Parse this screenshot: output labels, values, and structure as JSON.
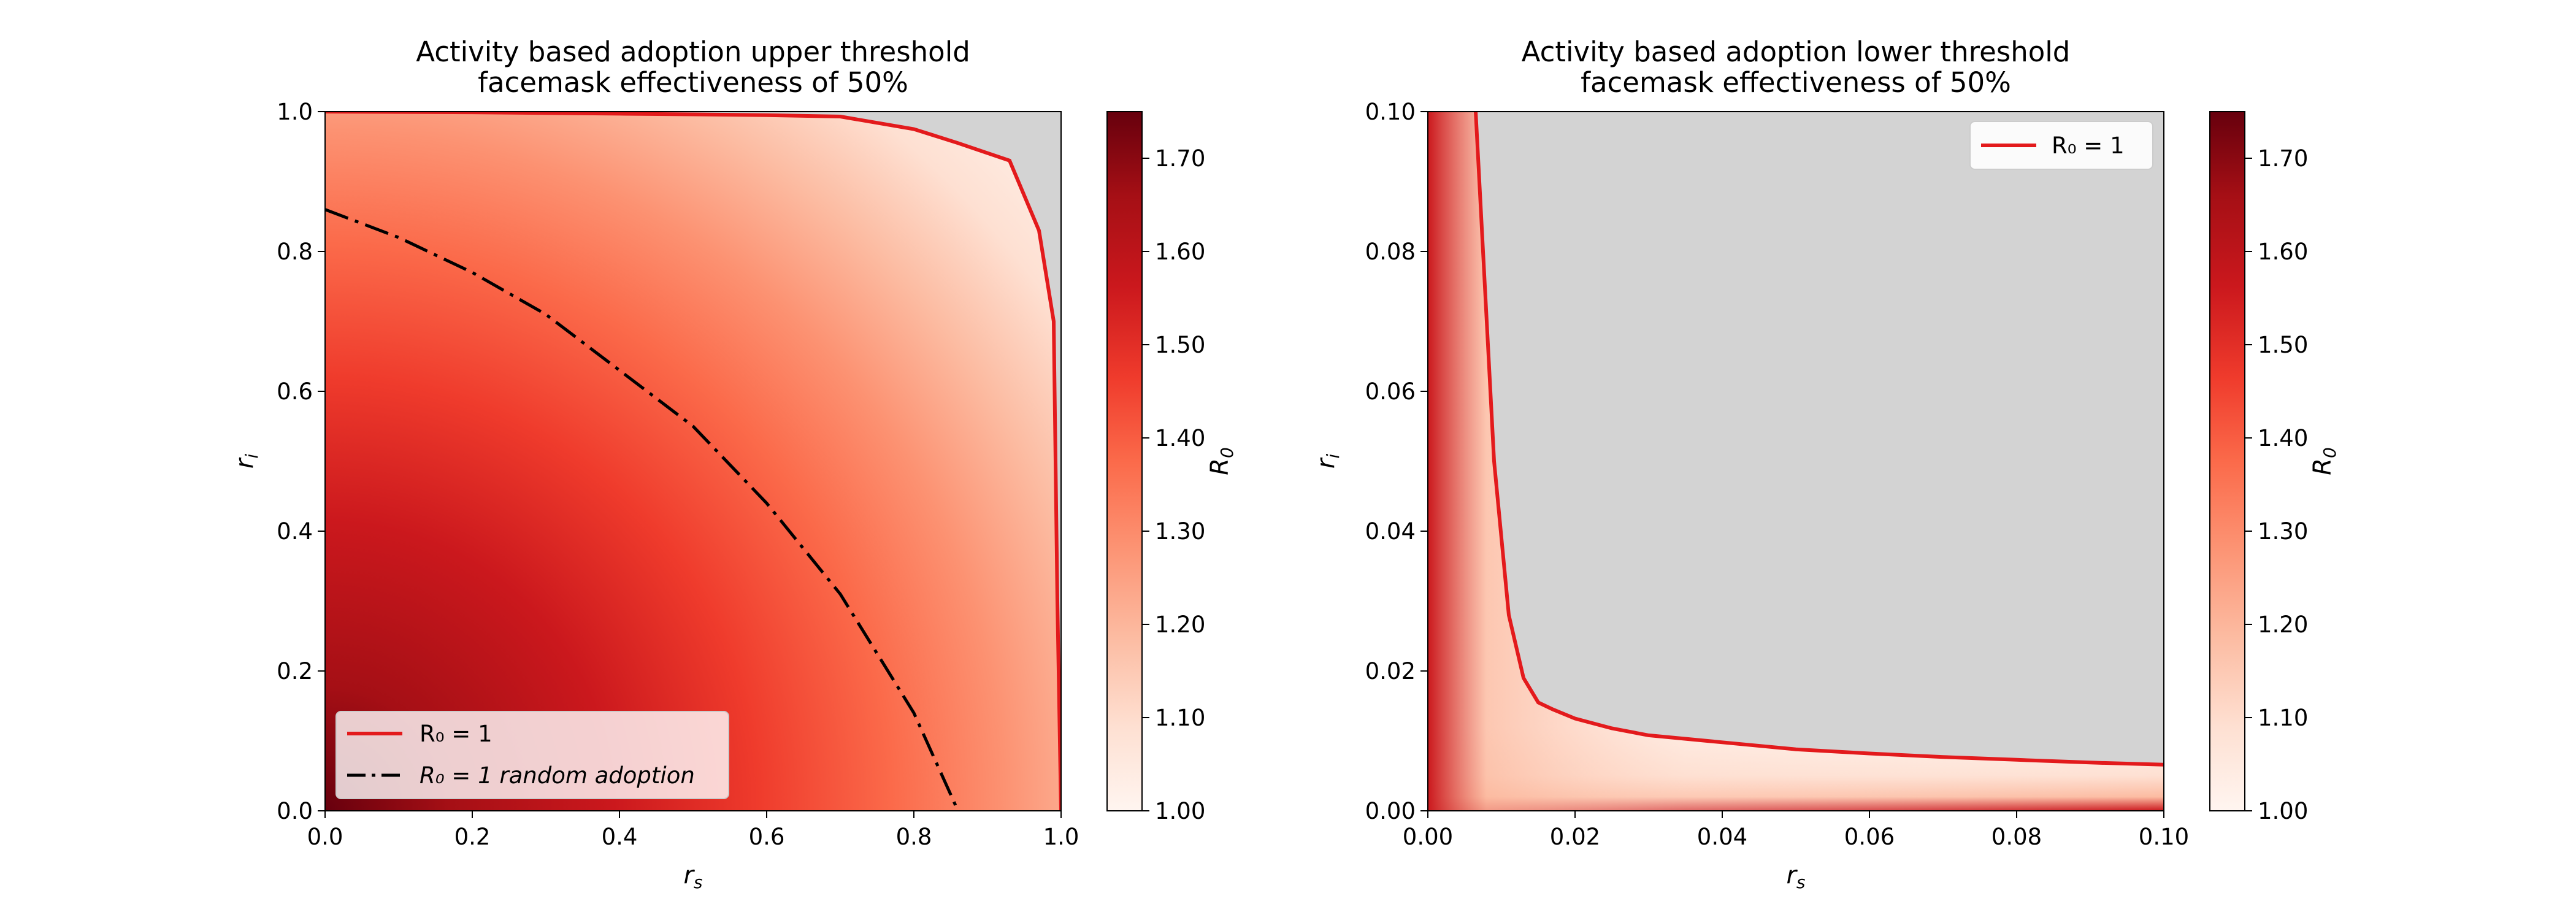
{
  "charts": [
    {
      "title_line1": "Activity based adoption upper threshold",
      "title_line2": "facemask effectiveness of 50%",
      "xlabel": "r_s",
      "ylabel": "r_i",
      "xticks": [
        "0.0",
        "0.2",
        "0.4",
        "0.6",
        "0.8",
        "1.0"
      ],
      "yticks": [
        "0.0",
        "0.2",
        "0.4",
        "0.6",
        "0.8",
        "1.0"
      ],
      "legend": [
        {
          "label": "R₀ = 1"
        },
        {
          "label": "R₀ = 1 random adoption"
        }
      ],
      "colorbar": {
        "label": "R₀",
        "ticks": [
          "1.00",
          "1.10",
          "1.20",
          "1.30",
          "1.40",
          "1.50",
          "1.60",
          "1.70"
        ]
      }
    },
    {
      "title_line1": "Activity based adoption lower threshold",
      "title_line2": "facemask effectiveness of 50%",
      "xlabel": "r_s",
      "ylabel": "r_i",
      "xticks": [
        "0.00",
        "0.02",
        "0.04",
        "0.06",
        "0.08",
        "0.10"
      ],
      "yticks": [
        "0.00",
        "0.02",
        "0.04",
        "0.06",
        "0.08",
        "0.10"
      ],
      "legend": [
        {
          "label": "R₀ = 1"
        }
      ],
      "colorbar": {
        "label": "R₀",
        "ticks": [
          "1.00",
          "1.10",
          "1.20",
          "1.30",
          "1.40",
          "1.50",
          "1.60",
          "1.70"
        ]
      }
    }
  ],
  "chart_data": [
    {
      "type": "heatmap",
      "title": "Activity based adoption upper threshold facemask effectiveness of 50%",
      "xlabel": "r_s",
      "ylabel": "r_i",
      "xlim": [
        0,
        1
      ],
      "ylim": [
        0,
        1
      ],
      "colorbar_label": "R0",
      "colorbar_range": [
        1.0,
        1.75
      ],
      "colormap": "Reds",
      "region_above_threshold_color": "#d3d3d3",
      "series": [
        {
          "name": "R0 = 1",
          "style": "solid",
          "color": "#e31a1c",
          "x": [
            0.0,
            0.2,
            0.4,
            0.6,
            0.7,
            0.8,
            0.86,
            0.93,
            0.97,
            0.99,
            0.995,
            1.0
          ],
          "y": [
            1.0,
            0.999,
            0.997,
            0.995,
            0.993,
            0.975,
            0.955,
            0.93,
            0.83,
            0.7,
            0.3,
            0.0
          ]
        },
        {
          "name": "R0 = 1 random adoption",
          "style": "dashdot",
          "color": "#000000",
          "x": [
            0.0,
            0.1,
            0.2,
            0.3,
            0.4,
            0.5,
            0.6,
            0.7,
            0.8,
            0.86
          ],
          "y": [
            0.86,
            0.82,
            0.77,
            0.71,
            0.63,
            0.55,
            0.44,
            0.31,
            0.14,
            0.0
          ]
        }
      ]
    },
    {
      "type": "heatmap",
      "title": "Activity based adoption lower threshold facemask effectiveness of 50%",
      "xlabel": "r_s",
      "ylabel": "r_i",
      "xlim": [
        0,
        0.1
      ],
      "ylim": [
        0,
        0.1
      ],
      "colorbar_label": "R0",
      "colorbar_range": [
        1.0,
        1.75
      ],
      "colormap": "Reds",
      "region_above_threshold_color": "#d3d3d3",
      "series": [
        {
          "name": "R0 = 1",
          "style": "solid",
          "color": "#e31a1c",
          "x": [
            0.0065,
            0.0075,
            0.009,
            0.011,
            0.013,
            0.015,
            0.017,
            0.02,
            0.025,
            0.03,
            0.04,
            0.05,
            0.06,
            0.07,
            0.08,
            0.09,
            0.1
          ],
          "y": [
            0.1,
            0.08,
            0.05,
            0.028,
            0.019,
            0.0155,
            0.0145,
            0.0132,
            0.0118,
            0.0108,
            0.0098,
            0.0088,
            0.0082,
            0.0077,
            0.0073,
            0.0069,
            0.0066
          ]
        }
      ]
    }
  ]
}
